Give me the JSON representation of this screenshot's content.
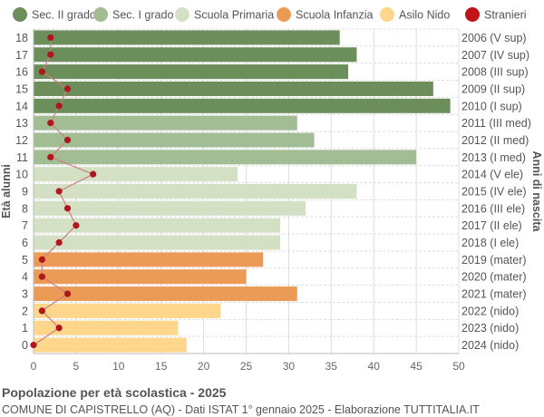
{
  "chart_data": {
    "type": "bar",
    "orientation": "horizontal",
    "title": "Popolazione per età scolastica - 2025",
    "subtitle": "COMUNE DI CAPISTRELLO (AQ) - Dati ISTAT 1° gennaio 2025 - Elaborazione TUTTITALIA.IT",
    "ylabel": "Età alunni",
    "ylabel_right": "Anni di nascita",
    "xlim": [
      0,
      50
    ],
    "xticks": [
      0,
      5,
      10,
      15,
      20,
      25,
      30,
      35,
      40,
      45,
      50
    ],
    "grid": true,
    "legend_position": "top",
    "ages": [
      0,
      1,
      2,
      3,
      4,
      5,
      6,
      7,
      8,
      9,
      10,
      11,
      12,
      13,
      14,
      15,
      16,
      17,
      18
    ],
    "birth_labels": [
      "2024 (nido)",
      "2023 (nido)",
      "2022 (nido)",
      "2021 (mater)",
      "2020 (mater)",
      "2019 (mater)",
      "2018 (I ele)",
      "2017 (II ele)",
      "2016 (III ele)",
      "2015 (IV ele)",
      "2014 (V ele)",
      "2013 (I med)",
      "2012 (II med)",
      "2011 (III med)",
      "2010 (I sup)",
      "2009 (II sup)",
      "2008 (III sup)",
      "2007 (IV sup)",
      "2006 (V sup)"
    ],
    "values": [
      18,
      17,
      22,
      31,
      25,
      27,
      29,
      29,
      32,
      38,
      24,
      45,
      33,
      31,
      49,
      47,
      37,
      38,
      36
    ],
    "stranieri": [
      0,
      3,
      1,
      4,
      1,
      1,
      3,
      5,
      4,
      3,
      7,
      2,
      4,
      2,
      3,
      4,
      1,
      2,
      2
    ],
    "groups": [
      {
        "name": "Sec. II grado",
        "color": "#6b8e5a",
        "ages": [
          14,
          15,
          16,
          17,
          18
        ]
      },
      {
        "name": "Sec. I grado",
        "color": "#a2bc94",
        "ages": [
          11,
          12,
          13
        ]
      },
      {
        "name": "Scuola Primaria",
        "color": "#d4e0c4",
        "ages": [
          6,
          7,
          8,
          9,
          10
        ]
      },
      {
        "name": "Scuola Infanzia",
        "color": "#eb9b55",
        "ages": [
          3,
          4,
          5
        ]
      },
      {
        "name": "Asilo Nido",
        "color": "#fed68c",
        "ages": [
          0,
          1,
          2
        ]
      }
    ],
    "stranieri_series": {
      "name": "Stranieri",
      "color": "#c0141b"
    }
  }
}
